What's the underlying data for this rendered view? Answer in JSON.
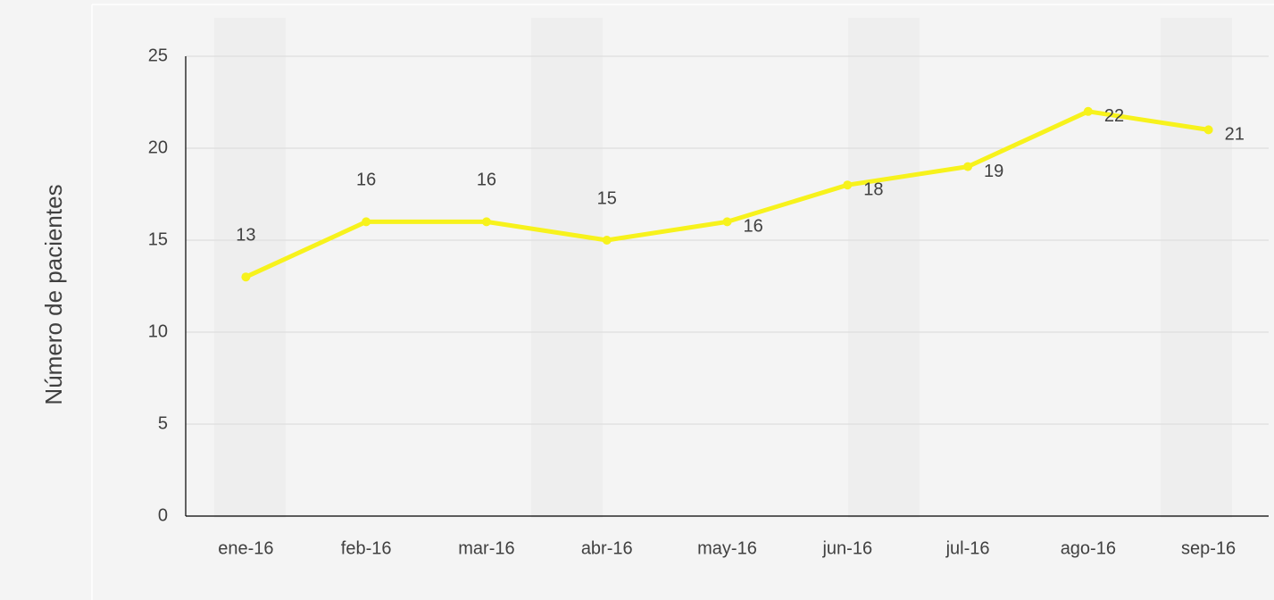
{
  "chart_data": {
    "type": "line",
    "y_axis_label": "Número de pacientes",
    "categories": [
      "ene-16",
      "feb-16",
      "mar-16",
      "abr-16",
      "may-16",
      "jun-16",
      "jul-16",
      "ago-16",
      "sep-16"
    ],
    "series": [
      {
        "name": "Número de pacientes",
        "color": "#f7f21c",
        "values": [
          13,
          16,
          16,
          15,
          16,
          18,
          19,
          22,
          21
        ]
      }
    ],
    "ylim": [
      0,
      25
    ],
    "yticks": [
      0,
      5,
      10,
      15,
      20,
      25
    ],
    "grid": true
  }
}
